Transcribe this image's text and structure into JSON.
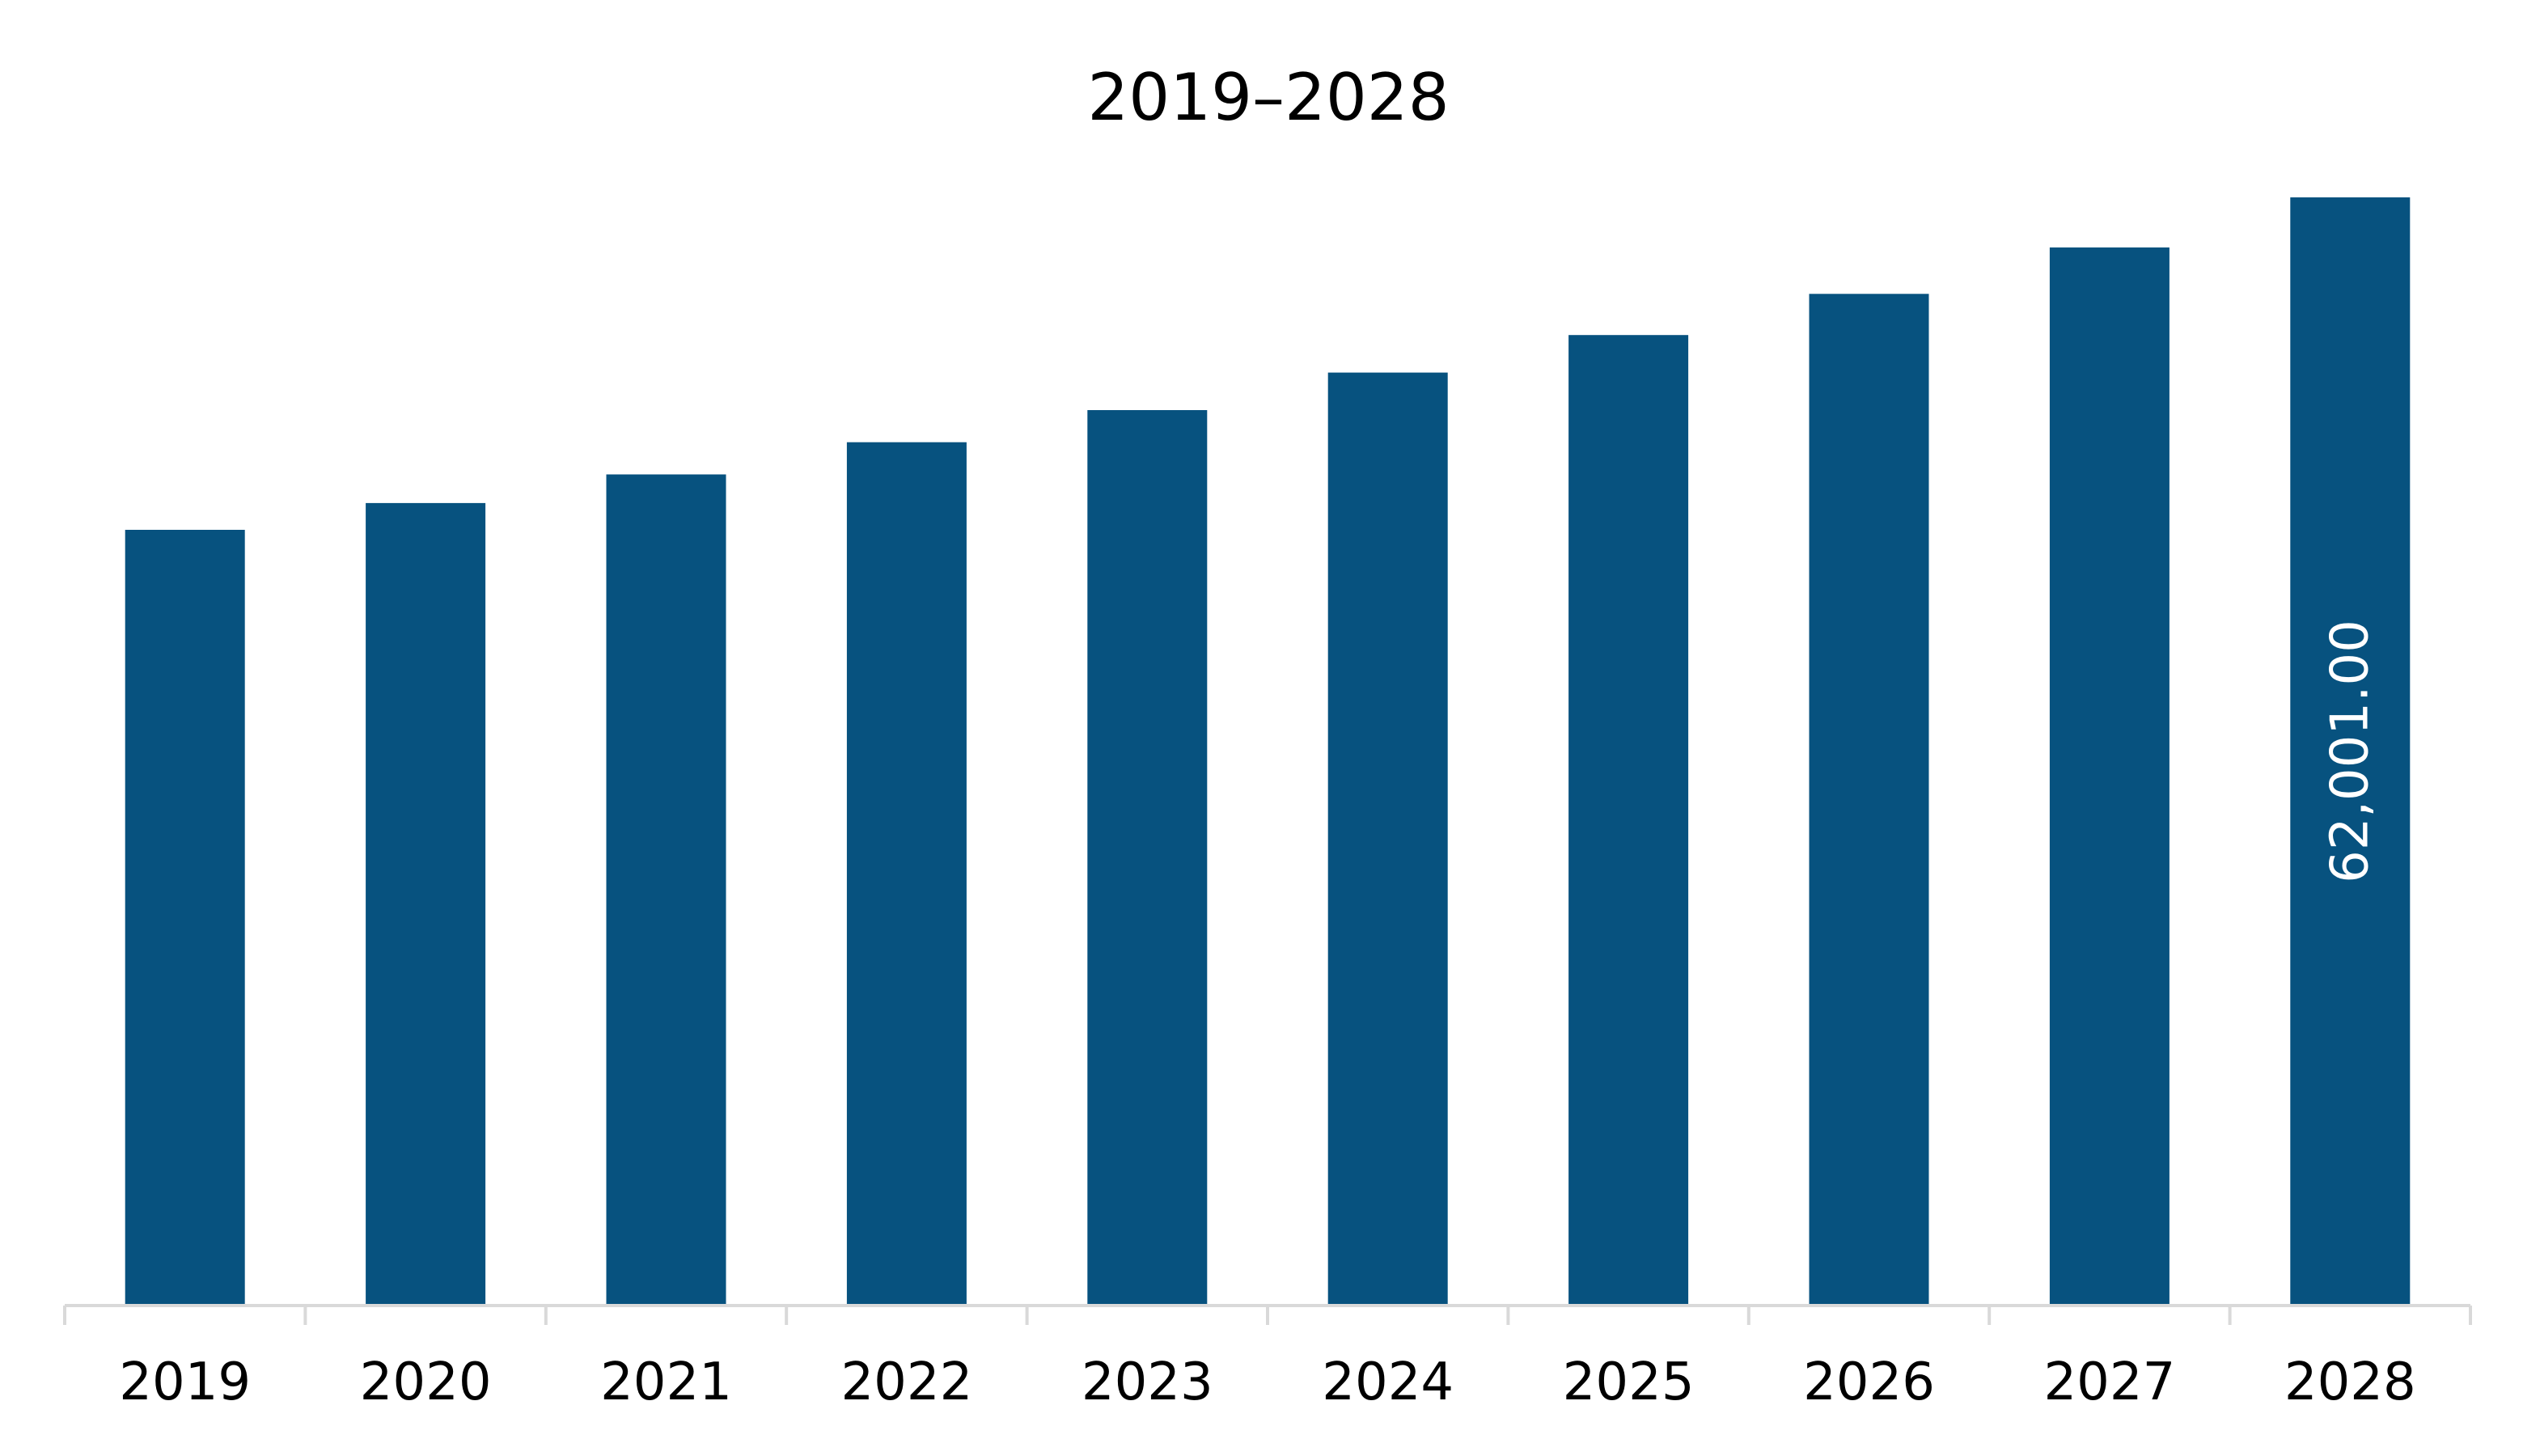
{
  "chart_data": {
    "type": "bar",
    "title": "2019–2028",
    "categories": [
      "2019",
      "2020",
      "2021",
      "2022",
      "2023",
      "2024",
      "2025",
      "2026",
      "2027",
      "2028"
    ],
    "values": [
      43400,
      44900,
      46500,
      48300,
      50100,
      52200,
      54300,
      56600,
      59200,
      62001
    ],
    "data_labels": [
      "",
      "",
      "",
      "",
      "",
      "",
      "",
      "",
      "",
      "62,001.00"
    ],
    "xlabel": "",
    "ylabel": "",
    "ylim": [
      0,
      62001
    ],
    "grid": false,
    "legend": "none",
    "bar_color": "#07527F",
    "axis_color": "#D9D9D9"
  }
}
